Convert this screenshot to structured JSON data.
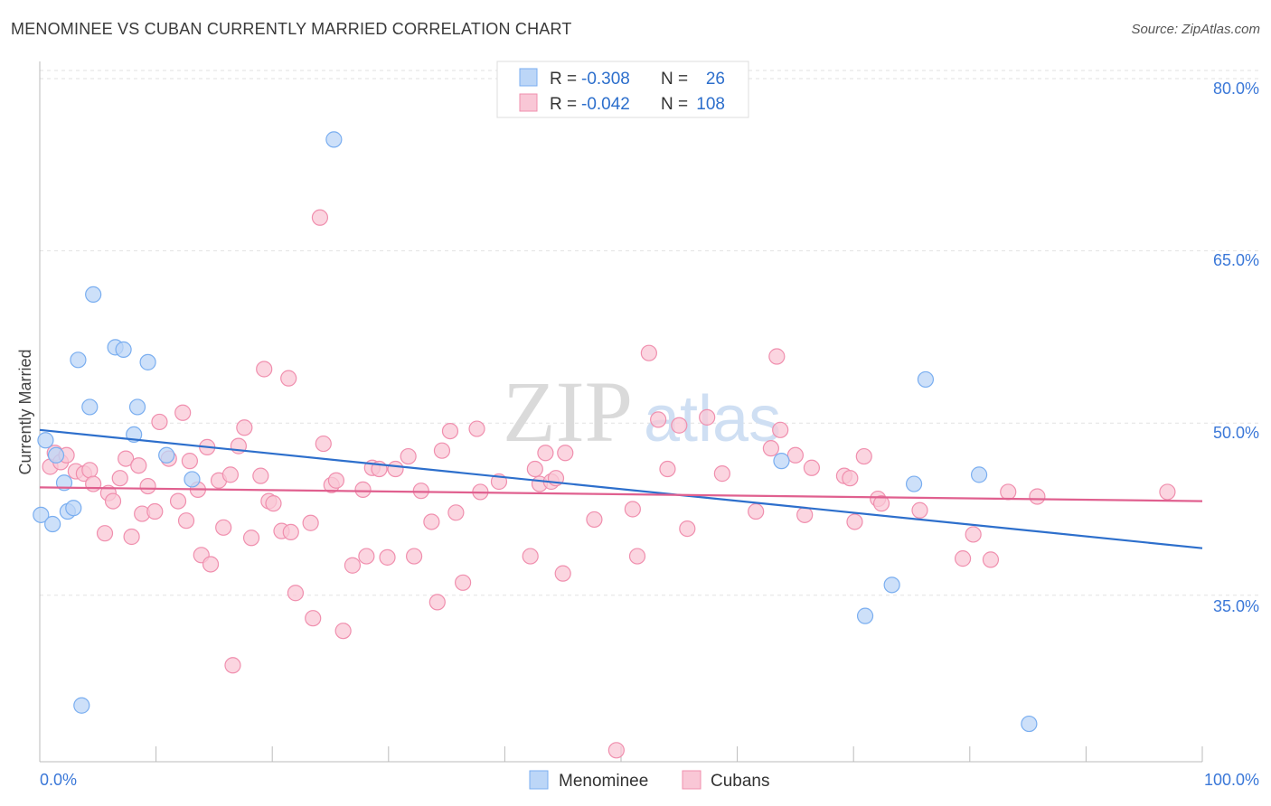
{
  "chart_data": {
    "type": "scatter",
    "title": "MENOMINEE VS CUBAN CURRENTLY MARRIED CORRELATION CHART",
    "source": "Source: ZipAtlas.com",
    "ylabel": "Currently Married",
    "xlabel": "",
    "x_tick_labels": [
      "0.0%",
      "100.0%"
    ],
    "y_tick_labels": [
      "80.0%",
      "65.0%",
      "50.0%",
      "35.0%"
    ],
    "y_ticks": [
      80,
      65,
      50,
      35
    ],
    "xlim": [
      0,
      100
    ],
    "ylim": [
      20.5,
      81.5
    ],
    "watermark": "ZIPatlas",
    "colors": {
      "menominee": "#7aaef0",
      "menominee_fill": "#bcd6f7",
      "cubans": "#f08fae",
      "cubans_fill": "#f9c7d6",
      "menominee_line": "#2d6fcc",
      "cubans_line": "#e0608f",
      "legend_value": "#2d6fcc"
    },
    "legend": {
      "rows": [
        {
          "r_label": "R =",
          "r_value": "-0.308",
          "n_label": "N =",
          "n_value": "26"
        },
        {
          "r_label": "R =",
          "r_value": "-0.042",
          "n_label": "N =",
          "n_value": "108"
        }
      ]
    },
    "series": [
      {
        "name": "Menominee",
        "trend": {
          "x": [
            0,
            100
          ],
          "y": [
            49.4,
            39.1
          ]
        },
        "points": [
          [
            0.5,
            48.5
          ],
          [
            0.1,
            42.0
          ],
          [
            1.1,
            41.2
          ],
          [
            1.4,
            47.2
          ],
          [
            2.1,
            44.8
          ],
          [
            2.4,
            42.3
          ],
          [
            2.9,
            42.6
          ],
          [
            3.3,
            55.5
          ],
          [
            3.6,
            25.4
          ],
          [
            4.3,
            51.4
          ],
          [
            4.6,
            61.2
          ],
          [
            6.5,
            56.6
          ],
          [
            7.2,
            56.4
          ],
          [
            8.1,
            49.0
          ],
          [
            8.4,
            51.4
          ],
          [
            9.3,
            55.3
          ],
          [
            10.9,
            47.2
          ],
          [
            13.1,
            45.1
          ],
          [
            25.3,
            74.7
          ],
          [
            63.8,
            46.7
          ],
          [
            71.0,
            33.2
          ],
          [
            73.3,
            35.9
          ],
          [
            75.2,
            44.7
          ],
          [
            76.2,
            53.8
          ],
          [
            80.8,
            45.5
          ],
          [
            85.1,
            23.8
          ]
        ]
      },
      {
        "name": "Cubans",
        "trend": {
          "x": [
            0,
            100
          ],
          "y": [
            44.4,
            43.2
          ]
        },
        "points": [
          [
            0.9,
            46.2
          ],
          [
            1.3,
            47.4
          ],
          [
            1.8,
            46.6
          ],
          [
            2.3,
            47.2
          ],
          [
            3.1,
            45.8
          ],
          [
            3.8,
            45.6
          ],
          [
            4.3,
            45.9
          ],
          [
            4.6,
            44.7
          ],
          [
            5.6,
            40.4
          ],
          [
            5.9,
            43.9
          ],
          [
            6.3,
            43.2
          ],
          [
            6.9,
            45.2
          ],
          [
            7.4,
            46.9
          ],
          [
            7.9,
            40.1
          ],
          [
            8.5,
            46.3
          ],
          [
            8.8,
            42.1
          ],
          [
            9.3,
            44.5
          ],
          [
            9.9,
            42.3
          ],
          [
            10.3,
            50.1
          ],
          [
            11.1,
            46.9
          ],
          [
            11.9,
            43.2
          ],
          [
            12.3,
            50.9
          ],
          [
            12.6,
            41.5
          ],
          [
            12.9,
            46.7
          ],
          [
            13.6,
            44.2
          ],
          [
            13.9,
            38.5
          ],
          [
            14.4,
            47.9
          ],
          [
            14.7,
            37.7
          ],
          [
            15.4,
            45.0
          ],
          [
            15.8,
            40.9
          ],
          [
            16.4,
            45.5
          ],
          [
            16.6,
            28.9
          ],
          [
            17.1,
            48.0
          ],
          [
            17.6,
            49.6
          ],
          [
            18.2,
            40.0
          ],
          [
            19.0,
            45.4
          ],
          [
            19.3,
            54.7
          ],
          [
            19.7,
            43.2
          ],
          [
            20.1,
            43.0
          ],
          [
            20.8,
            40.6
          ],
          [
            21.4,
            53.9
          ],
          [
            21.6,
            40.5
          ],
          [
            22.0,
            35.2
          ],
          [
            23.3,
            41.3
          ],
          [
            23.5,
            33.0
          ],
          [
            24.1,
            67.9
          ],
          [
            24.4,
            48.2
          ],
          [
            25.1,
            44.6
          ],
          [
            25.5,
            45.0
          ],
          [
            26.1,
            31.9
          ],
          [
            26.9,
            37.6
          ],
          [
            27.8,
            44.2
          ],
          [
            28.1,
            38.4
          ],
          [
            28.6,
            46.1
          ],
          [
            29.2,
            46.0
          ],
          [
            29.9,
            38.3
          ],
          [
            30.6,
            46.0
          ],
          [
            31.7,
            47.1
          ],
          [
            32.2,
            38.4
          ],
          [
            32.8,
            44.1
          ],
          [
            33.7,
            41.4
          ],
          [
            34.2,
            34.4
          ],
          [
            34.6,
            47.6
          ],
          [
            35.3,
            49.3
          ],
          [
            35.8,
            42.2
          ],
          [
            36.4,
            36.1
          ],
          [
            37.6,
            49.5
          ],
          [
            37.9,
            44.0
          ],
          [
            39.5,
            44.9
          ],
          [
            42.2,
            38.4
          ],
          [
            42.6,
            46.0
          ],
          [
            43.0,
            44.7
          ],
          [
            43.5,
            47.4
          ],
          [
            44.0,
            44.9
          ],
          [
            44.4,
            45.2
          ],
          [
            45.0,
            36.9
          ],
          [
            45.2,
            47.4
          ],
          [
            47.7,
            41.6
          ],
          [
            49.6,
            21.5
          ],
          [
            51.0,
            42.5
          ],
          [
            51.4,
            38.4
          ],
          [
            52.4,
            56.1
          ],
          [
            53.2,
            50.3
          ],
          [
            54.0,
            46.0
          ],
          [
            55.0,
            49.8
          ],
          [
            55.7,
            40.8
          ],
          [
            57.4,
            50.5
          ],
          [
            58.7,
            45.6
          ],
          [
            61.6,
            42.3
          ],
          [
            62.9,
            47.8
          ],
          [
            63.4,
            55.8
          ],
          [
            63.7,
            49.4
          ],
          [
            65.0,
            47.2
          ],
          [
            65.8,
            42.0
          ],
          [
            66.4,
            46.1
          ],
          [
            69.2,
            45.4
          ],
          [
            69.7,
            45.2
          ],
          [
            70.1,
            41.4
          ],
          [
            70.9,
            47.1
          ],
          [
            72.1,
            43.4
          ],
          [
            72.4,
            43.0
          ],
          [
            75.7,
            42.4
          ],
          [
            79.4,
            38.2
          ],
          [
            80.3,
            40.3
          ],
          [
            81.8,
            38.1
          ],
          [
            83.3,
            44.0
          ],
          [
            85.8,
            43.6
          ],
          [
            97.0,
            44.0
          ]
        ]
      }
    ]
  }
}
